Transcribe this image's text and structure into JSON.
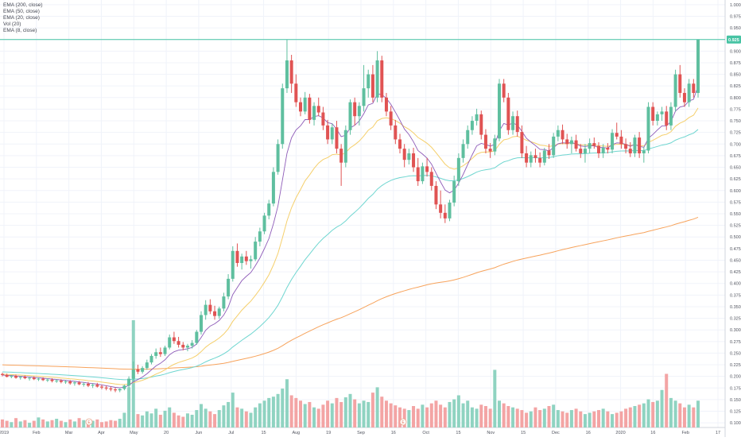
{
  "legend": {
    "items": [
      "EMA (200, close)",
      "EMA (50, close)",
      "EMA (20, close)",
      "Vol (20)",
      "EMA (8, close)"
    ]
  },
  "colors": {
    "up": "#5fbf9f",
    "down": "#e05353",
    "vol_up": "#8fd3c1",
    "vol_down": "#f3a4a4",
    "ema200": "#f7a35c",
    "ema50": "#6fd6d0",
    "ema20": "#f5cf6b",
    "ema8": "#8e5bb8",
    "price_line": "#46c3a3",
    "grid": "#f0f3fa"
  },
  "chart_data": {
    "type": "candlestick",
    "y_axis": {
      "ticks": [
        "1.000",
        "0.975",
        "0.950",
        "0.925",
        "0.900",
        "0.875",
        "0.850",
        "0.825",
        "0.800",
        "0.775",
        "0.750",
        "0.725",
        "0.700",
        "0.675",
        "0.650",
        "0.625",
        "0.600",
        "0.575",
        "0.550",
        "0.525",
        "0.500",
        "0.475",
        "0.450",
        "0.425",
        "0.400",
        "0.375",
        "0.350",
        "0.325",
        "0.300",
        "0.275",
        "0.250",
        "0.225",
        "0.200",
        "0.175",
        "0.150",
        "0.125",
        "0.100"
      ],
      "range": [
        0.09,
        1.01
      ]
    },
    "x_axis": {
      "labels": [
        "2019",
        "Feb",
        "Mar",
        "Apr",
        "May",
        "20",
        "Jun",
        "Jul",
        "15",
        "Aug",
        "19",
        "Sep",
        "16",
        "Oct",
        "15",
        "Nov",
        "15",
        "Dec",
        "16",
        "2020",
        "16",
        "Feb",
        "17"
      ]
    },
    "last_price_label": "0.925",
    "last_price": 0.925,
    "event_markers": [
      "E",
      "E"
    ],
    "candles_ohlc": [
      [
        0.205,
        0.208,
        0.2,
        0.203
      ],
      [
        0.203,
        0.206,
        0.198,
        0.199
      ],
      [
        0.199,
        0.203,
        0.196,
        0.201
      ],
      [
        0.201,
        0.204,
        0.195,
        0.197
      ],
      [
        0.197,
        0.201,
        0.193,
        0.199
      ],
      [
        0.199,
        0.202,
        0.194,
        0.196
      ],
      [
        0.196,
        0.199,
        0.191,
        0.197
      ],
      [
        0.197,
        0.2,
        0.192,
        0.194
      ],
      [
        0.194,
        0.198,
        0.19,
        0.195
      ],
      [
        0.195,
        0.198,
        0.19,
        0.192
      ],
      [
        0.192,
        0.196,
        0.188,
        0.193
      ],
      [
        0.193,
        0.196,
        0.187,
        0.19
      ],
      [
        0.19,
        0.194,
        0.186,
        0.191
      ],
      [
        0.191,
        0.194,
        0.185,
        0.188
      ],
      [
        0.188,
        0.192,
        0.184,
        0.189
      ],
      [
        0.189,
        0.192,
        0.182,
        0.185
      ],
      [
        0.185,
        0.19,
        0.18,
        0.187
      ],
      [
        0.187,
        0.19,
        0.181,
        0.183
      ],
      [
        0.183,
        0.187,
        0.178,
        0.184
      ],
      [
        0.184,
        0.188,
        0.177,
        0.18
      ],
      [
        0.18,
        0.185,
        0.175,
        0.182
      ],
      [
        0.182,
        0.186,
        0.176,
        0.178
      ],
      [
        0.178,
        0.182,
        0.172,
        0.176
      ],
      [
        0.176,
        0.18,
        0.17,
        0.174
      ],
      [
        0.174,
        0.178,
        0.168,
        0.172
      ],
      [
        0.172,
        0.176,
        0.166,
        0.17
      ],
      [
        0.17,
        0.174,
        0.166,
        0.173
      ],
      [
        0.173,
        0.182,
        0.17,
        0.18
      ],
      [
        0.18,
        0.2,
        0.176,
        0.195
      ],
      [
        0.195,
        0.232,
        0.19,
        0.215
      ],
      [
        0.215,
        0.225,
        0.205,
        0.21
      ],
      [
        0.21,
        0.222,
        0.206,
        0.218
      ],
      [
        0.218,
        0.236,
        0.214,
        0.23
      ],
      [
        0.23,
        0.248,
        0.226,
        0.244
      ],
      [
        0.244,
        0.26,
        0.238,
        0.252
      ],
      [
        0.252,
        0.262,
        0.242,
        0.248
      ],
      [
        0.248,
        0.266,
        0.244,
        0.262
      ],
      [
        0.262,
        0.29,
        0.258,
        0.284
      ],
      [
        0.284,
        0.296,
        0.27,
        0.276
      ],
      [
        0.276,
        0.285,
        0.262,
        0.268
      ],
      [
        0.268,
        0.274,
        0.256,
        0.262
      ],
      [
        0.262,
        0.27,
        0.254,
        0.266
      ],
      [
        0.266,
        0.278,
        0.26,
        0.272
      ],
      [
        0.272,
        0.3,
        0.268,
        0.296
      ],
      [
        0.296,
        0.34,
        0.29,
        0.332
      ],
      [
        0.332,
        0.364,
        0.322,
        0.354
      ],
      [
        0.354,
        0.366,
        0.334,
        0.34
      ],
      [
        0.34,
        0.352,
        0.322,
        0.33
      ],
      [
        0.33,
        0.35,
        0.324,
        0.346
      ],
      [
        0.346,
        0.38,
        0.34,
        0.372
      ],
      [
        0.372,
        0.42,
        0.366,
        0.41
      ],
      [
        0.41,
        0.48,
        0.404,
        0.47
      ],
      [
        0.47,
        0.486,
        0.436,
        0.444
      ],
      [
        0.444,
        0.464,
        0.43,
        0.458
      ],
      [
        0.458,
        0.47,
        0.44,
        0.448
      ],
      [
        0.448,
        0.46,
        0.432,
        0.452
      ],
      [
        0.452,
        0.5,
        0.448,
        0.49
      ],
      [
        0.49,
        0.52,
        0.48,
        0.512
      ],
      [
        0.512,
        0.552,
        0.506,
        0.546
      ],
      [
        0.546,
        0.58,
        0.538,
        0.572
      ],
      [
        0.572,
        0.65,
        0.566,
        0.64
      ],
      [
        0.64,
        0.71,
        0.634,
        0.7
      ],
      [
        0.7,
        0.83,
        0.69,
        0.82
      ],
      [
        0.82,
        0.925,
        0.81,
        0.88
      ],
      [
        0.88,
        0.892,
        0.81,
        0.83
      ],
      [
        0.83,
        0.85,
        0.78,
        0.79
      ],
      [
        0.79,
        0.8,
        0.76,
        0.77
      ],
      [
        0.77,
        0.812,
        0.764,
        0.8
      ],
      [
        0.8,
        0.808,
        0.744,
        0.752
      ],
      [
        0.752,
        0.79,
        0.74,
        0.782
      ],
      [
        0.782,
        0.8,
        0.76,
        0.768
      ],
      [
        0.768,
        0.78,
        0.73,
        0.74
      ],
      [
        0.74,
        0.752,
        0.7,
        0.71
      ],
      [
        0.71,
        0.744,
        0.7,
        0.736
      ],
      [
        0.736,
        0.75,
        0.68,
        0.69
      ],
      [
        0.69,
        0.7,
        0.61,
        0.66
      ],
      [
        0.66,
        0.74,
        0.65,
        0.73
      ],
      [
        0.73,
        0.796,
        0.72,
        0.79
      ],
      [
        0.79,
        0.8,
        0.74,
        0.76
      ],
      [
        0.76,
        0.79,
        0.74,
        0.782
      ],
      [
        0.782,
        0.87,
        0.77,
        0.82
      ],
      [
        0.82,
        0.86,
        0.8,
        0.85
      ],
      [
        0.85,
        0.87,
        0.79,
        0.8
      ],
      [
        0.8,
        0.9,
        0.79,
        0.88
      ],
      [
        0.88,
        0.89,
        0.79,
        0.8
      ],
      [
        0.8,
        0.81,
        0.76,
        0.77
      ],
      [
        0.77,
        0.782,
        0.73,
        0.74
      ],
      [
        0.74,
        0.752,
        0.7,
        0.71
      ],
      [
        0.71,
        0.722,
        0.68,
        0.69
      ],
      [
        0.69,
        0.7,
        0.65,
        0.666
      ],
      [
        0.666,
        0.69,
        0.656,
        0.68
      ],
      [
        0.68,
        0.692,
        0.64,
        0.65
      ],
      [
        0.65,
        0.67,
        0.61,
        0.62
      ],
      [
        0.62,
        0.66,
        0.614,
        0.652
      ],
      [
        0.652,
        0.67,
        0.63,
        0.64
      ],
      [
        0.64,
        0.65,
        0.6,
        0.61
      ],
      [
        0.61,
        0.62,
        0.56,
        0.57
      ],
      [
        0.57,
        0.6,
        0.54,
        0.552
      ],
      [
        0.552,
        0.57,
        0.53,
        0.54
      ],
      [
        0.54,
        0.58,
        0.534,
        0.574
      ],
      [
        0.574,
        0.632,
        0.566,
        0.62
      ],
      [
        0.62,
        0.68,
        0.61,
        0.67
      ],
      [
        0.67,
        0.71,
        0.66,
        0.7
      ],
      [
        0.7,
        0.74,
        0.69,
        0.73
      ],
      [
        0.73,
        0.76,
        0.72,
        0.75
      ],
      [
        0.75,
        0.776,
        0.74,
        0.764
      ],
      [
        0.764,
        0.772,
        0.71,
        0.72
      ],
      [
        0.72,
        0.732,
        0.68,
        0.69
      ],
      [
        0.69,
        0.702,
        0.67,
        0.684
      ],
      [
        0.684,
        0.72,
        0.676,
        0.712
      ],
      [
        0.712,
        0.84,
        0.706,
        0.83
      ],
      [
        0.83,
        0.84,
        0.79,
        0.8
      ],
      [
        0.8,
        0.81,
        0.72,
        0.73
      ],
      [
        0.73,
        0.77,
        0.72,
        0.76
      ],
      [
        0.76,
        0.772,
        0.716,
        0.726
      ],
      [
        0.726,
        0.74,
        0.67,
        0.68
      ],
      [
        0.68,
        0.696,
        0.65,
        0.66
      ],
      [
        0.66,
        0.684,
        0.65,
        0.676
      ],
      [
        0.676,
        0.69,
        0.66,
        0.67
      ],
      [
        0.67,
        0.682,
        0.65,
        0.66
      ],
      [
        0.66,
        0.692,
        0.654,
        0.686
      ],
      [
        0.686,
        0.7,
        0.668,
        0.676
      ],
      [
        0.676,
        0.724,
        0.67,
        0.716
      ],
      [
        0.716,
        0.74,
        0.706,
        0.73
      ],
      [
        0.73,
        0.742,
        0.7,
        0.71
      ],
      [
        0.71,
        0.722,
        0.69,
        0.7
      ],
      [
        0.7,
        0.716,
        0.68,
        0.708
      ],
      [
        0.708,
        0.72,
        0.684,
        0.69
      ],
      [
        0.69,
        0.7,
        0.67,
        0.68
      ],
      [
        0.68,
        0.7,
        0.66,
        0.69
      ],
      [
        0.69,
        0.712,
        0.68,
        0.702
      ],
      [
        0.702,
        0.714,
        0.69,
        0.696
      ],
      [
        0.696,
        0.704,
        0.67,
        0.68
      ],
      [
        0.68,
        0.7,
        0.67,
        0.692
      ],
      [
        0.692,
        0.702,
        0.68,
        0.688
      ],
      [
        0.688,
        0.732,
        0.68,
        0.724
      ],
      [
        0.724,
        0.746,
        0.71,
        0.716
      ],
      [
        0.716,
        0.73,
        0.69,
        0.7
      ],
      [
        0.7,
        0.712,
        0.68,
        0.69
      ],
      [
        0.69,
        0.704,
        0.672,
        0.68
      ],
      [
        0.68,
        0.72,
        0.672,
        0.714
      ],
      [
        0.714,
        0.726,
        0.67,
        0.68
      ],
      [
        0.68,
        0.694,
        0.66,
        0.686
      ],
      [
        0.686,
        0.79,
        0.68,
        0.78
      ],
      [
        0.78,
        0.79,
        0.74,
        0.75
      ],
      [
        0.75,
        0.77,
        0.74,
        0.764
      ],
      [
        0.764,
        0.78,
        0.75,
        0.77
      ],
      [
        0.77,
        0.782,
        0.73,
        0.74
      ],
      [
        0.74,
        0.79,
        0.73,
        0.78
      ],
      [
        0.78,
        0.86,
        0.77,
        0.85
      ],
      [
        0.85,
        0.87,
        0.8,
        0.81
      ],
      [
        0.81,
        0.82,
        0.78,
        0.79
      ],
      [
        0.79,
        0.84,
        0.78,
        0.83
      ],
      [
        0.83,
        0.84,
        0.8,
        0.81
      ],
      [
        0.81,
        0.925,
        0.8,
        0.925
      ]
    ],
    "volumes": [
      12,
      10,
      8,
      14,
      9,
      11,
      7,
      10,
      15,
      12,
      9,
      11,
      13,
      10,
      8,
      12,
      9,
      14,
      11,
      7,
      10,
      12,
      8,
      9,
      11,
      10,
      13,
      22,
      60,
      160,
      20,
      18,
      24,
      21,
      28,
      19,
      25,
      30,
      22,
      18,
      16,
      21,
      19,
      26,
      35,
      28,
      24,
      20,
      26,
      33,
      38,
      52,
      30,
      28,
      24,
      22,
      30,
      36,
      40,
      44,
      46,
      50,
      58,
      72,
      48,
      44,
      40,
      35,
      38,
      30,
      28,
      34,
      40,
      36,
      44,
      38,
      45,
      50,
      42,
      36,
      40,
      38,
      52,
      60,
      46,
      40,
      36,
      33,
      30,
      28,
      26,
      32,
      28,
      34,
      30,
      36,
      40,
      34,
      30,
      38,
      42,
      48,
      36,
      40,
      30,
      28,
      34,
      32,
      28,
      86,
      40,
      36,
      32,
      30,
      28,
      26,
      22,
      24,
      30,
      26,
      28,
      32,
      34,
      26,
      24,
      22,
      26,
      28,
      24,
      20,
      22,
      24,
      26,
      28,
      24,
      20,
      22,
      24,
      28,
      30,
      32,
      34,
      36,
      42,
      38,
      40,
      56,
      80,
      44,
      40,
      36,
      30,
      34,
      30,
      40,
      60
    ]
  }
}
